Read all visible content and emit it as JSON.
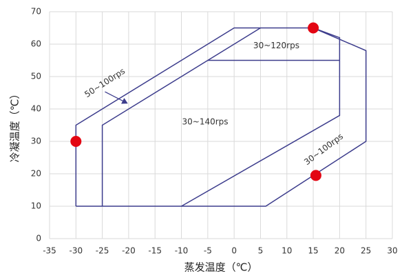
{
  "chart_data": {
    "type": "envelope",
    "xlabel": "蒸发温度（℃）",
    "ylabel": "冷凝温度（℃）",
    "xlim": [
      -35,
      30
    ],
    "xticks": [
      -35,
      -30,
      -25,
      -20,
      -15,
      -10,
      -5,
      0,
      5,
      10,
      15,
      20,
      25,
      30
    ],
    "ylim": [
      0,
      70
    ],
    "yticks": [
      0,
      10,
      20,
      30,
      40,
      50,
      60,
      70
    ],
    "grid": true,
    "color": "#3c3c8c",
    "series": [
      {
        "x": [
          -30,
          -30,
          0,
          15,
          25,
          25,
          6,
          -30
        ],
        "y": [
          10,
          35,
          65,
          65,
          58,
          30,
          10,
          10
        ]
      },
      {
        "x": [
          -25,
          -25,
          5
        ],
        "y": [
          10,
          35,
          65
        ]
      },
      {
        "x": [
          15,
          20,
          20,
          -10
        ],
        "y": [
          65,
          62,
          38,
          10
        ]
      },
      {
        "x": [
          -5,
          20
        ],
        "y": [
          55,
          55
        ]
      }
    ],
    "points": {
      "x": [
        -30,
        15,
        15.5
      ],
      "y": [
        30,
        65,
        19.5
      ],
      "color": "#e30613"
    },
    "annotations": [
      "50~100rps",
      "30~120rps",
      "30~140rps",
      "30~100rps"
    ]
  }
}
